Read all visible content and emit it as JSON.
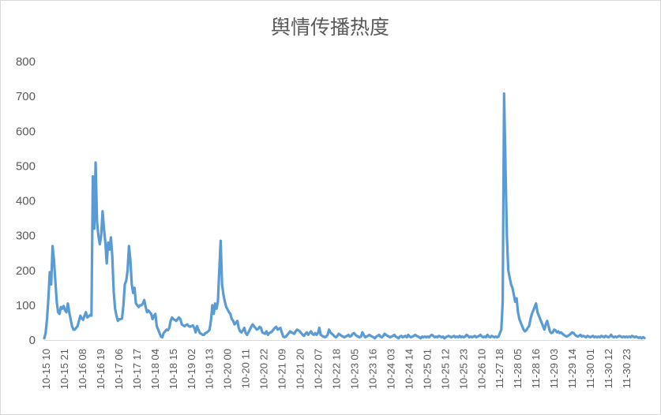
{
  "chart_data": {
    "type": "line",
    "title": "舆情传播热度",
    "xlabel": "",
    "ylabel": "",
    "ylim": [
      0,
      800
    ],
    "yticks": [
      0,
      100,
      200,
      300,
      400,
      500,
      600,
      700,
      800
    ],
    "grid": false,
    "legend": "none",
    "color": "#5B9BD5",
    "tick_labels": [
      "10-15 10",
      "10-15 21",
      "10-16 08",
      "10-16 19",
      "10-17 06",
      "10-17 17",
      "10-18 04",
      "10-18 15",
      "10-19 02",
      "10-19 13",
      "10-20 00",
      "10-20 11",
      "10-20 22",
      "10-21 09",
      "10-21 20",
      "10-22 07",
      "10-22 18",
      "10-23 05",
      "10-23 16",
      "10-24 03",
      "10-24 14",
      "10-25 01",
      "10-25 12",
      "10-25 23",
      "10-26 10",
      "11-27 18",
      "11-28 05",
      "11-28 16",
      "11-29 03",
      "11-29 14",
      "11-30 01",
      "11-30 12",
      "11-30 23"
    ],
    "series": [
      {
        "values": [
          5,
          20,
          60,
          120,
          195,
          160,
          270,
          230,
          170,
          110,
          80,
          75,
          95,
          90,
          98,
          85,
          80,
          105,
          80,
          60,
          40,
          30,
          30,
          35,
          40,
          55,
          70,
          62,
          58,
          70,
          80,
          65,
          68,
          72,
          70,
          470,
          320,
          510,
          340,
          300,
          275,
          300,
          370,
          320,
          280,
          220,
          280,
          260,
          295,
          240,
          140,
          90,
          70,
          55,
          60,
          60,
          62,
          100,
          160,
          170,
          200,
          270,
          230,
          160,
          135,
          150,
          105,
          100,
          95,
          100,
          100,
          105,
          115,
          95,
          80,
          85,
          80,
          75,
          60,
          70,
          75,
          40,
          30,
          20,
          10,
          8,
          20,
          25,
          30,
          28,
          35,
          55,
          65,
          60,
          58,
          55,
          60,
          65,
          60,
          45,
          42,
          40,
          43,
          45,
          40,
          38,
          40,
          42,
          35,
          22,
          40,
          30,
          20,
          18,
          15,
          15,
          20,
          22,
          25,
          30,
          55,
          100,
          75,
          105,
          90,
          110,
          200,
          285,
          160,
          130,
          110,
          95,
          88,
          80,
          75,
          60,
          55,
          45,
          50,
          55,
          35,
          25,
          22,
          28,
          35,
          20,
          15,
          22,
          30,
          38,
          45,
          40,
          35,
          30,
          32,
          38,
          35,
          22,
          20,
          18,
          25,
          15,
          20,
          22,
          25,
          30,
          35,
          38,
          30,
          32,
          35,
          22,
          10,
          8,
          10,
          15,
          20,
          25,
          22,
          20,
          18,
          25,
          30,
          28,
          25,
          20,
          15,
          12,
          18,
          22,
          15,
          20,
          25,
          18,
          15,
          20,
          15,
          20,
          35,
          15,
          12,
          10,
          8,
          10,
          15,
          30,
          22,
          18,
          15,
          10,
          8,
          12,
          18,
          15,
          12,
          10,
          8,
          10,
          12,
          15,
          10,
          12,
          18,
          20,
          15,
          12,
          10,
          8,
          10,
          22,
          15,
          8,
          10,
          12,
          15,
          12,
          10,
          8,
          5,
          10,
          12,
          15,
          10,
          8,
          12,
          18,
          15,
          12,
          10,
          8,
          10,
          12,
          15,
          10,
          8,
          5,
          10,
          12,
          8,
          10,
          12,
          8,
          15,
          10,
          8,
          10,
          12,
          15,
          12,
          10,
          8,
          5,
          10,
          8,
          10,
          8,
          10,
          8,
          12,
          15,
          12,
          8,
          10,
          8,
          12,
          10,
          8,
          10,
          5,
          8,
          10,
          12,
          10,
          8,
          10,
          12,
          8,
          10,
          8,
          12,
          8,
          10,
          8,
          10,
          15,
          12,
          8,
          10,
          8,
          10,
          12,
          8,
          10,
          12,
          15,
          10,
          8,
          10,
          8,
          15,
          10,
          8,
          12,
          10,
          8,
          10,
          8,
          10,
          20,
          30,
          110,
          708,
          500,
          300,
          200,
          180,
          160,
          150,
          130,
          110,
          120,
          80,
          60,
          50,
          40,
          30,
          25,
          28,
          35,
          40,
          60,
          75,
          85,
          95,
          105,
          80,
          70,
          60,
          50,
          40,
          30,
          45,
          55,
          40,
          25,
          20,
          22,
          30,
          28,
          22,
          25,
          20,
          22,
          18,
          15,
          12,
          10,
          12,
          15,
          18,
          22,
          20,
          15,
          12,
          10,
          12,
          15,
          10,
          12,
          10,
          8,
          12,
          10,
          8,
          10,
          12,
          8,
          10,
          8,
          10,
          8,
          12,
          10,
          8,
          12,
          10,
          8,
          10,
          15,
          10,
          8,
          10,
          8,
          10,
          12,
          10,
          8,
          10,
          8,
          10,
          8,
          10,
          8,
          12,
          10,
          8,
          10,
          8,
          6,
          8,
          5,
          8,
          6
        ]
      }
    ]
  }
}
